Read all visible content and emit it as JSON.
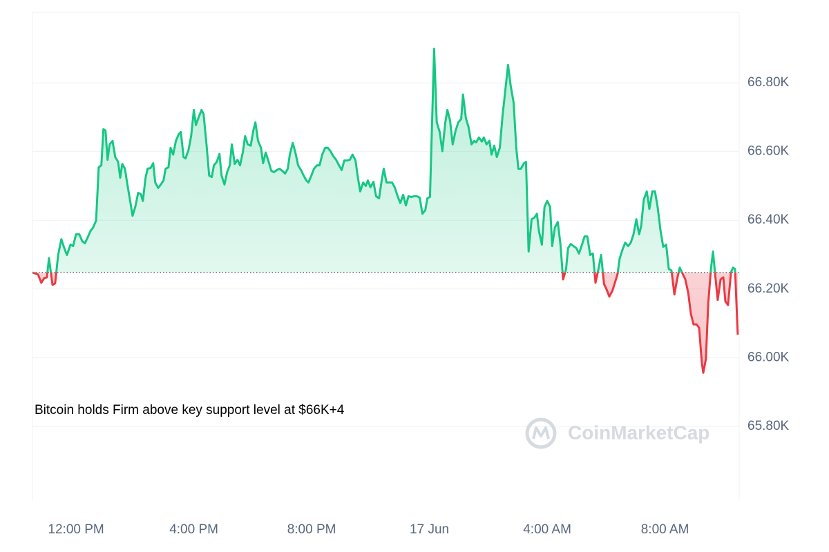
{
  "chart_data": {
    "type": "line",
    "annotation": "Bitcoin holds Firm above key support level at $66K+4",
    "watermark": "CoinMarketCap",
    "baseline": 66248,
    "up_color": "#16c784",
    "down_color": "#ea3943",
    "grid": true,
    "xlim": [
      10.52,
      34.52
    ],
    "xticks": [
      {
        "value": 12,
        "label": "12:00 PM"
      },
      {
        "value": 16,
        "label": "4:00 PM"
      },
      {
        "value": 20,
        "label": "8:00 PM"
      },
      {
        "value": 24,
        "label": "17 Jun"
      },
      {
        "value": 28,
        "label": "4:00 AM"
      },
      {
        "value": 32,
        "label": "8:00 AM"
      }
    ],
    "ylim": [
      65585,
      67005
    ],
    "yticks": [
      {
        "value": 65800,
        "label": "65.80K"
      },
      {
        "value": 66000,
        "label": "66.00K"
      },
      {
        "value": 66200,
        "label": "66.20K"
      },
      {
        "value": 66400,
        "label": "66.40K"
      },
      {
        "value": 66600,
        "label": "66.60K"
      },
      {
        "value": 66800,
        "label": "66.80K"
      }
    ],
    "x": [
      10.52,
      10.71,
      10.82,
      10.92,
      11.01,
      11.08,
      11.2,
      11.29,
      11.39,
      11.5,
      11.6,
      11.69,
      11.81,
      11.9,
      12.0,
      12.11,
      12.21,
      12.3,
      12.39,
      12.49,
      12.58,
      12.68,
      12.77,
      12.86,
      12.93,
      13.0,
      13.07,
      13.14,
      13.24,
      13.33,
      13.43,
      13.5,
      13.57,
      13.66,
      13.75,
      13.85,
      13.92,
      14.01,
      14.11,
      14.2,
      14.27,
      14.36,
      14.43,
      14.53,
      14.62,
      14.69,
      14.79,
      14.88,
      14.97,
      15.04,
      15.14,
      15.21,
      15.3,
      15.39,
      15.49,
      15.56,
      15.65,
      15.72,
      15.82,
      15.91,
      16.0,
      16.07,
      16.17,
      16.26,
      16.33,
      16.43,
      16.52,
      16.61,
      16.68,
      16.78,
      16.87,
      16.94,
      17.04,
      17.13,
      17.22,
      17.29,
      17.39,
      17.48,
      17.57,
      17.67,
      17.74,
      17.83,
      17.93,
      18.02,
      18.09,
      18.18,
      18.28,
      18.35,
      18.44,
      18.54,
      18.63,
      18.72,
      18.82,
      18.91,
      19.0,
      19.1,
      19.19,
      19.26,
      19.36,
      19.45,
      19.54,
      19.64,
      19.73,
      19.82,
      19.89,
      19.99,
      20.08,
      20.18,
      20.27,
      20.36,
      20.46,
      20.55,
      20.64,
      20.74,
      20.83,
      20.93,
      21.02,
      21.11,
      21.21,
      21.3,
      21.39,
      21.49,
      21.56,
      21.65,
      21.75,
      21.84,
      21.91,
      22.0,
      22.1,
      22.19,
      22.29,
      22.38,
      22.45,
      22.54,
      22.64,
      22.73,
      22.82,
      22.92,
      23.01,
      23.11,
      23.2,
      23.29,
      23.39,
      23.48,
      23.57,
      23.67,
      23.76,
      23.86,
      23.93,
      24.02,
      24.09,
      24.16,
      24.25,
      24.35,
      24.44,
      24.54,
      24.61,
      24.7,
      24.79,
      24.89,
      24.98,
      25.08,
      25.14,
      25.24,
      25.33,
      25.43,
      25.52,
      25.59,
      25.68,
      25.78,
      25.85,
      25.94,
      26.04,
      26.11,
      26.2,
      26.29,
      26.39,
      26.48,
      26.57,
      26.67,
      26.76,
      26.86,
      26.95,
      27.02,
      27.11,
      27.21,
      27.28,
      27.37,
      27.47,
      27.56,
      27.65,
      27.72,
      27.82,
      27.91,
      28.0,
      28.1,
      28.17,
      28.26,
      28.36,
      28.45,
      28.54,
      28.64,
      28.71,
      28.8,
      28.89,
      28.99,
      29.08,
      29.18,
      29.27,
      29.36,
      29.46,
      29.55,
      29.64,
      29.74,
      29.83,
      29.93,
      30.02,
      30.11,
      30.21,
      30.3,
      30.39,
      30.46,
      30.56,
      30.65,
      30.75,
      30.84,
      30.93,
      31.03,
      31.12,
      31.19,
      31.28,
      31.38,
      31.47,
      31.57,
      31.66,
      31.75,
      31.85,
      31.94,
      32.04,
      32.13,
      32.22,
      32.32,
      32.41,
      32.5,
      32.6,
      32.69,
      32.79,
      32.88,
      32.97,
      33.07,
      33.16,
      33.25,
      33.3,
      33.39,
      33.47,
      33.56,
      33.63,
      33.72,
      33.79,
      33.89,
      33.98,
      34.05,
      34.14,
      34.24,
      34.31,
      34.38,
      34.47
    ],
    "values": [
      66248,
      66242,
      66218,
      66232,
      66234,
      66290,
      66212,
      66216,
      66298,
      66345,
      66319,
      66299,
      66329,
      66325,
      66359,
      66359,
      66339,
      66333,
      66349,
      66369,
      66379,
      66399,
      66554,
      66560,
      66665,
      66661,
      66576,
      66621,
      66631,
      66584,
      66570,
      66524,
      66564,
      66550,
      66500,
      66450,
      66413,
      66439,
      66480,
      66476,
      66456,
      66524,
      66550,
      66552,
      66566,
      66510,
      66494,
      66504,
      66516,
      66550,
      66554,
      66611,
      66591,
      66631,
      66651,
      66657,
      66584,
      66580,
      66605,
      66645,
      66721,
      66677,
      66701,
      66721,
      66709,
      66621,
      66530,
      66526,
      66560,
      66570,
      66593,
      66530,
      66504,
      66540,
      66560,
      66621,
      66564,
      66576,
      66560,
      66601,
      66645,
      66621,
      66617,
      66661,
      66685,
      66631,
      66611,
      66566,
      66597,
      66570,
      66544,
      66540,
      66546,
      66550,
      66544,
      66536,
      66550,
      66591,
      66625,
      66597,
      66560,
      66546,
      66530,
      66516,
      66510,
      66530,
      66550,
      66560,
      66560,
      66591,
      66611,
      66611,
      66601,
      66586,
      66576,
      66560,
      66546,
      66574,
      66574,
      66576,
      66591,
      66574,
      66530,
      66484,
      66510,
      66500,
      66516,
      66496,
      66512,
      66470,
      66464,
      66516,
      66550,
      66510,
      66510,
      66510,
      66496,
      66470,
      66450,
      66474,
      66443,
      66470,
      66468,
      66470,
      66470,
      66466,
      66419,
      66429,
      66464,
      66468,
      66681,
      66899,
      66685,
      66657,
      66601,
      66685,
      66721,
      66691,
      66621,
      66661,
      66685,
      66695,
      66766,
      66697,
      66671,
      66621,
      66631,
      66627,
      66641,
      66629,
      66641,
      66621,
      66631,
      66591,
      66617,
      66584,
      66611,
      66701,
      66772,
      66852,
      66792,
      66742,
      66611,
      66550,
      66550,
      66566,
      66570,
      66309,
      66403,
      66407,
      66419,
      66369,
      66329,
      66439,
      66456,
      66439,
      66325,
      66379,
      66395,
      66329,
      66228,
      66258,
      66319,
      66331,
      66325,
      66319,
      66303,
      66329,
      66353,
      66353,
      66299,
      66303,
      66218,
      66258,
      66299,
      66214,
      66198,
      66178,
      66194,
      66218,
      66244,
      66288,
      66315,
      66335,
      66325,
      66335,
      66359,
      66403,
      66359,
      66383,
      66460,
      66484,
      66433,
      66484,
      66484,
      66439,
      66369,
      66323,
      66329,
      66258,
      66254,
      66184,
      66228,
      66262,
      66244,
      66228,
      66188,
      66127,
      66097,
      66097,
      66087,
      65986,
      65956,
      65996,
      66158,
      66258,
      66309,
      66228,
      66168,
      66228,
      66234,
      66164,
      66153,
      66248,
      66262,
      66258,
      66067
    ]
  }
}
